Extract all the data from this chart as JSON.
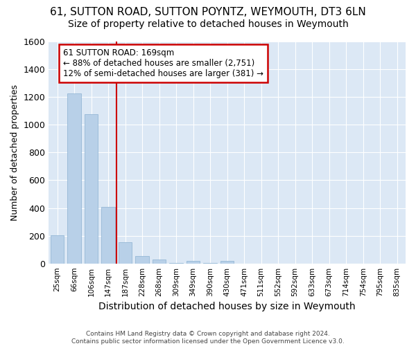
{
  "title": "61, SUTTON ROAD, SUTTON POYNTZ, WEYMOUTH, DT3 6LN",
  "subtitle": "Size of property relative to detached houses in Weymouth",
  "xlabel": "Distribution of detached houses by size in Weymouth",
  "ylabel": "Number of detached properties",
  "categories": [
    "25sqm",
    "66sqm",
    "106sqm",
    "147sqm",
    "187sqm",
    "228sqm",
    "268sqm",
    "309sqm",
    "349sqm",
    "390sqm",
    "430sqm",
    "471sqm",
    "511sqm",
    "552sqm",
    "592sqm",
    "633sqm",
    "673sqm",
    "714sqm",
    "754sqm",
    "795sqm",
    "835sqm"
  ],
  "values": [
    205,
    1225,
    1075,
    410,
    155,
    55,
    30,
    5,
    20,
    5,
    20,
    0,
    0,
    0,
    0,
    0,
    0,
    0,
    0,
    0,
    0
  ],
  "bar_color": "#b8d0e8",
  "bar_edge_color": "#8ab0d0",
  "vline_color": "#cc0000",
  "vline_x": 3.5,
  "annotation_line1": "61 SUTTON ROAD: 169sqm",
  "annotation_line2": "← 88% of detached houses are smaller (2,751)",
  "annotation_line3": "12% of semi-detached houses are larger (381) →",
  "annotation_box_color": "#ffffff",
  "annotation_box_edge_color": "#cc0000",
  "footnote": "Contains HM Land Registry data © Crown copyright and database right 2024.\nContains public sector information licensed under the Open Government Licence v3.0.",
  "ylim": [
    0,
    1600
  ],
  "background_color": "#ffffff",
  "plot_background": "#dce8f5",
  "grid_color": "#ffffff",
  "title_fontsize": 11,
  "subtitle_fontsize": 10
}
